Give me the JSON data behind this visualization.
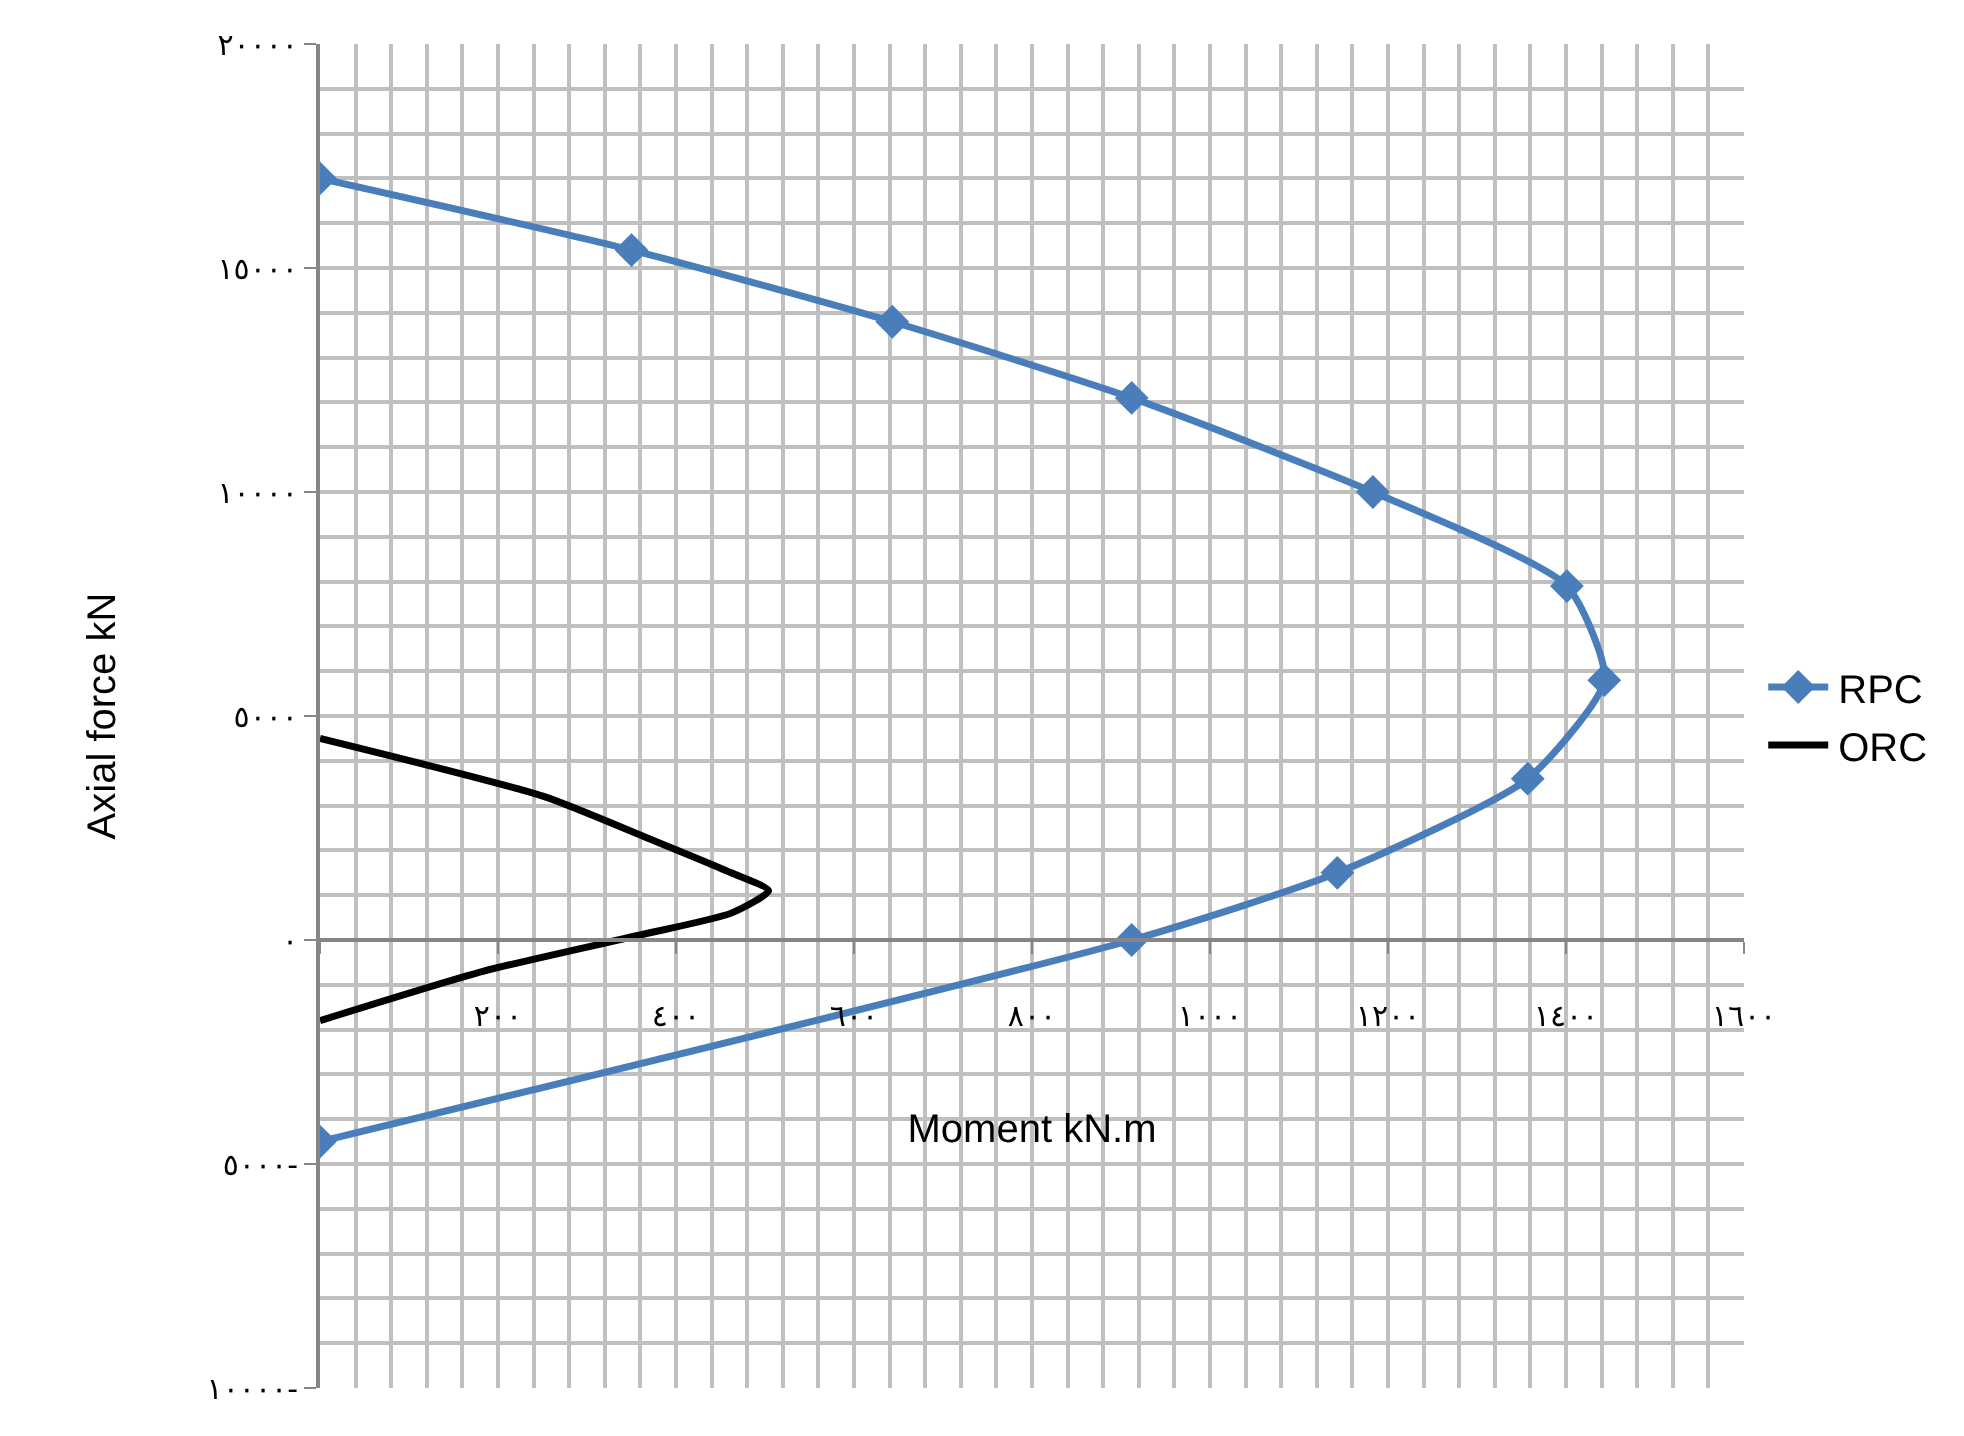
{
  "chart_data": {
    "type": "line",
    "xlabel": "Moment kN.m",
    "ylabel": "Axial force kN",
    "xlim": [
      0,
      1600
    ],
    "ylim": [
      -10000,
      20000
    ],
    "xticks": [
      {
        "value": 0,
        "label": null
      },
      {
        "value": 200,
        "label": "٢٠٠"
      },
      {
        "value": 400,
        "label": "٤٠٠"
      },
      {
        "value": 600,
        "label": "٦٠٠"
      },
      {
        "value": 800,
        "label": "٨٠٠"
      },
      {
        "value": 1000,
        "label": "١٠٠٠"
      },
      {
        "value": 1200,
        "label": "١٢٠٠"
      },
      {
        "value": 1400,
        "label": "١٤٠٠"
      },
      {
        "value": 1600,
        "label": "١٦٠٠"
      }
    ],
    "yticks": [
      {
        "value": -10000,
        "label": "١٠٠٠٠-"
      },
      {
        "value": -5000,
        "label": "٥٠٠٠-"
      },
      {
        "value": 0,
        "label": "٠"
      },
      {
        "value": 5000,
        "label": "٥٠٠٠"
      },
      {
        "value": 10000,
        "label": "١٠٠٠٠"
      },
      {
        "value": 15000,
        "label": "١٥٠٠٠"
      },
      {
        "value": 20000,
        "label": "٢٠٠٠٠"
      }
    ],
    "grid": true,
    "legend": "right",
    "series": [
      {
        "name": "RPC",
        "color": "#4a7ebb",
        "marker": "diamond",
        "line_style": "solid",
        "x": [
          0,
          350,
          643,
          912,
          1183,
          1401,
          1443,
          1357,
          1143,
          912,
          0
        ],
        "values": [
          17000,
          15400,
          13800,
          12100,
          10000,
          7900,
          5800,
          3600,
          1500,
          0,
          -4500
        ]
      },
      {
        "name": "ORC",
        "color": "#000000",
        "marker": "none",
        "line_style": "solid",
        "x": [
          0,
          252,
          365,
          462,
          504,
          462,
          357,
          183,
          0
        ],
        "values": [
          4500,
          3200,
          2300,
          1500,
          1100,
          600,
          100,
          -700,
          -1800
        ]
      }
    ]
  }
}
